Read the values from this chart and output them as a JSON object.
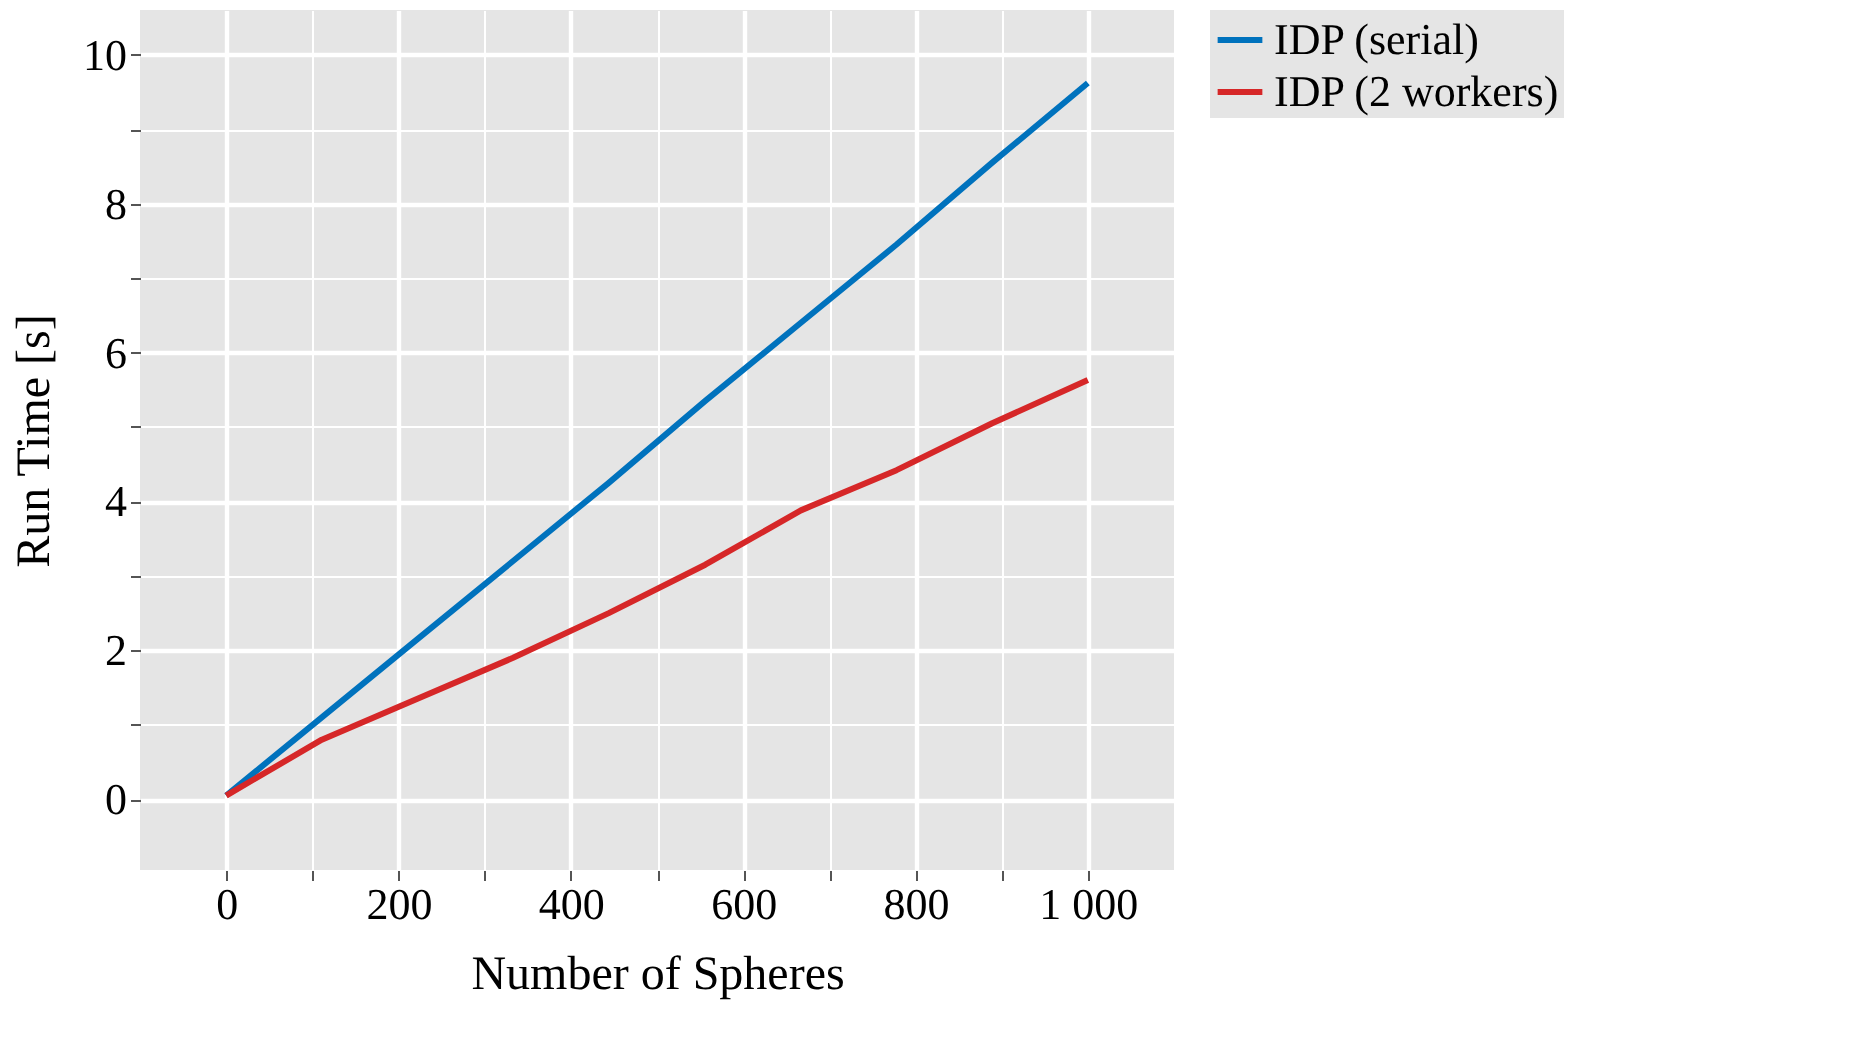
{
  "chart_data": {
    "type": "line",
    "xlabel": "Number of Spheres",
    "ylabel": "Run Time [s]",
    "x": [
      0,
      111,
      222,
      333,
      444,
      556,
      667,
      778,
      889,
      1000
    ],
    "series": [
      {
        "name": "IDP (serial)",
        "color": "#0072bd",
        "values": [
          0.05,
          1.1,
          2.15,
          3.2,
          4.25,
          5.35,
          6.4,
          7.45,
          8.55,
          9.62
        ]
      },
      {
        "name": "IDP (2 workers)",
        "color": "#d62728",
        "values": [
          0.05,
          0.8,
          1.35,
          1.9,
          2.5,
          3.15,
          3.88,
          4.42,
          5.05,
          5.63
        ]
      }
    ],
    "xlim": [
      -100,
      1100
    ],
    "xticks": [
      0,
      {
        "value": 100,
        "label": null
      },
      200,
      {
        "value": 300,
        "label": null
      },
      400,
      {
        "value": 500,
        "label": null
      },
      600,
      {
        "value": 700,
        "label": null
      },
      800,
      {
        "value": 900,
        "label": null
      },
      {
        "value": 1000,
        "label": "1 000"
      }
    ],
    "ylim": [
      -0.95,
      10.6
    ],
    "yticks": [
      0,
      {
        "value": 1,
        "label": null
      },
      2,
      {
        "value": 3,
        "label": null
      },
      4,
      {
        "value": 5,
        "label": null
      },
      6,
      {
        "value": 7,
        "label": null
      },
      8,
      {
        "value": 9,
        "label": null
      },
      10
    ],
    "grid": true,
    "legend": "right",
    "marker": "none",
    "line_style": "solid"
  }
}
